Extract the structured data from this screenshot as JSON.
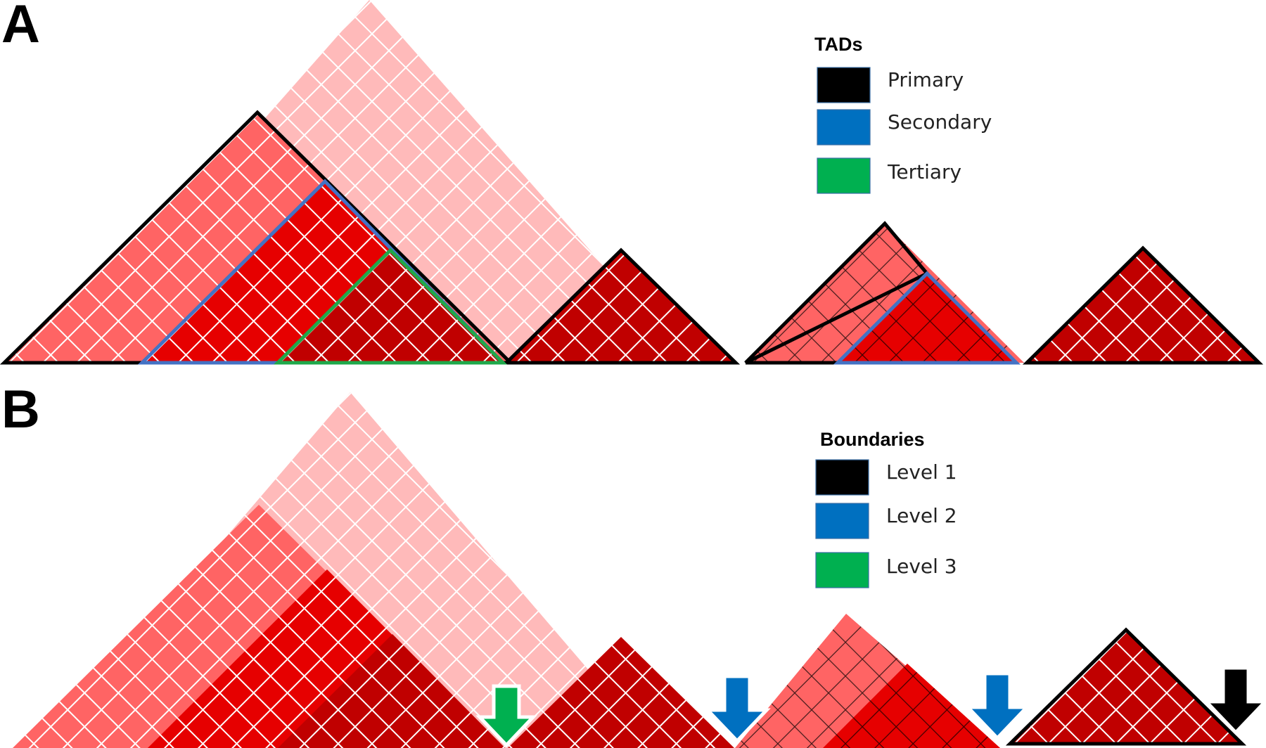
{
  "panels": [
    {
      "label": "A",
      "legend": {
        "title": "TADs",
        "items": [
          {
            "label": "Primary",
            "color": "#000000"
          },
          {
            "label": "Secondary",
            "color": "#0070C0"
          },
          {
            "label": "Tertiary",
            "color": "#00B050"
          }
        ]
      }
    },
    {
      "label": "B",
      "legend": {
        "title": "Boundaries",
        "items": [
          {
            "label": "Level 1",
            "color": "#000000"
          },
          {
            "label": "Level 2",
            "color": "#0070C0"
          },
          {
            "label": "Level 3",
            "color": "#00B050"
          }
        ]
      }
    }
  ],
  "colors": {
    "pale": "#FFBABA",
    "light": "#FF6464",
    "mid": "#E60000",
    "dark": "#C00000",
    "primary": "#000000",
    "secondary": "#4472C4",
    "tertiary": "#1FA84A",
    "arrow_blue": "#0070C0",
    "arrow_green": "#00B050",
    "arrow_black": "#000000"
  }
}
